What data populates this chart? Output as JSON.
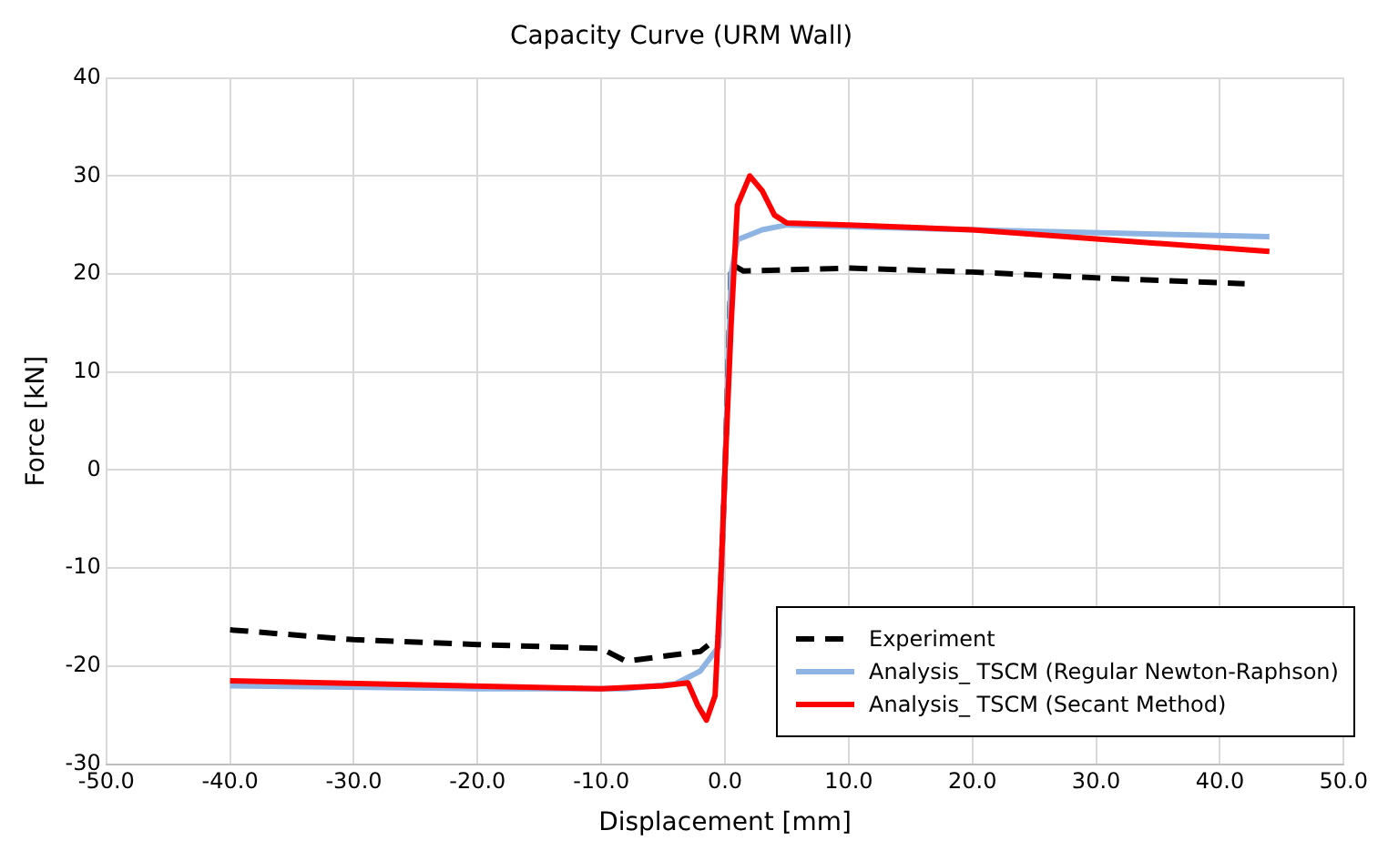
{
  "chart_data": {
    "type": "line",
    "title": "Capacity Curve (URM Wall)",
    "xlabel": "Displacement [mm]",
    "ylabel": "Force [kN]",
    "xlim": [
      -50,
      50
    ],
    "ylim": [
      -30,
      40
    ],
    "xticks": [
      {
        "value": -50,
        "label": "-50.0"
      },
      {
        "value": -40,
        "label": "-40.0"
      },
      {
        "value": -30,
        "label": "-30.0"
      },
      {
        "value": -20,
        "label": "-20.0"
      },
      {
        "value": -10,
        "label": "-10.0"
      },
      {
        "value": 0,
        "label": "0.0"
      },
      {
        "value": 10,
        "label": "10.0"
      },
      {
        "value": 20,
        "label": "20.0"
      },
      {
        "value": 30,
        "label": "30.0"
      },
      {
        "value": 40,
        "label": "40.0"
      },
      {
        "value": 50,
        "label": "50.0"
      }
    ],
    "yticks": [
      -30,
      -20,
      -10,
      0,
      10,
      20,
      30,
      40
    ],
    "grid": true,
    "legend": "bottom right",
    "marker": "none",
    "series": [
      {
        "name": "Experiment",
        "color": "#000000",
        "line_style": "dashed",
        "x": [
          -40,
          -30,
          -20,
          -10,
          -8,
          -5,
          -2,
          -0.5,
          0,
          0.5,
          1.5,
          10,
          20,
          30,
          42
        ],
        "values": [
          -16.3,
          -17.3,
          -17.8,
          -18.2,
          -19.5,
          -19,
          -18.5,
          -17,
          0,
          21,
          20.3,
          20.6,
          20.2,
          19.6,
          19
        ]
      },
      {
        "name": "Analysis_ TSCM (Regular Newton-Raphson)",
        "color": "#8db4e2",
        "line_style": "solid",
        "x": [
          -40,
          -20,
          -8,
          -4,
          -2,
          -0.5,
          0,
          0.5,
          1,
          2,
          3,
          5,
          20,
          44
        ],
        "values": [
          -22,
          -22.3,
          -22.3,
          -21.8,
          -20.5,
          -18,
          0,
          20,
          23.5,
          24,
          24.5,
          25,
          24.5,
          23.8
        ]
      },
      {
        "name": "Analysis_ TSCM (Secant Method)",
        "color": "#ff0000",
        "line_style": "solid",
        "x": [
          -40,
          -10,
          -5,
          -3,
          -2.2,
          -1.5,
          -0.8,
          -0.3,
          0,
          0.5,
          1,
          2,
          3,
          4,
          5,
          10,
          20,
          44
        ],
        "values": [
          -21.5,
          -22.3,
          -22,
          -21.7,
          -24,
          -25.5,
          -23,
          -10,
          0,
          15,
          27,
          30,
          28.5,
          26,
          25.2,
          25,
          24.5,
          22.3
        ]
      }
    ]
  }
}
